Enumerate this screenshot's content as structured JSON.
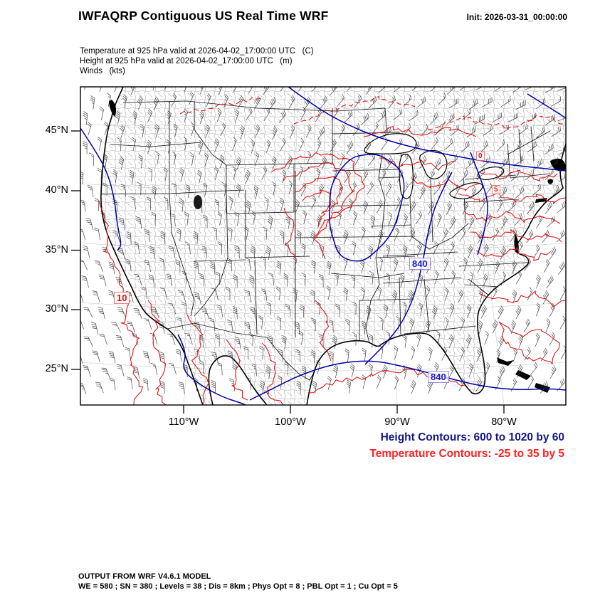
{
  "header": {
    "title": "IWFAQRP Contiguous US Real Time WRF",
    "init": "Init: 2026-03-31_00:00:00"
  },
  "subtitle": {
    "line1": "Temperature at 925 hPa valid at 2026-04-02_17:00:00 UTC   (C)",
    "line2": "Height at 925 hPa valid at 2026-04-02_17:00:00 UTC   (m)",
    "line3": "Winds   (kts)"
  },
  "map": {
    "lat_labels": [
      "45°N",
      "40°N",
      "35°N",
      "30°N",
      "25°N"
    ],
    "lon_labels": [
      "110°W",
      "100°W",
      "90°W",
      "80°W"
    ],
    "contour_labels": [
      {
        "text": "840",
        "type": "height"
      },
      {
        "text": "840",
        "type": "height"
      },
      {
        "text": "10",
        "type": "temperature"
      },
      {
        "text": "0",
        "type": "temperature"
      },
      {
        "text": "5",
        "type": "temperature"
      }
    ]
  },
  "legend": {
    "height_label": "Height Contours: 600 to 1020 by 60",
    "temperature_label": "Temperature Contours: -25 to 35 by 5"
  },
  "colors": {
    "height_contour": "#00008B",
    "temperature_contour": "#E01010",
    "legend_height": "#15158C",
    "legend_temperature": "#FF2020"
  },
  "footer": {
    "line1": "OUTPUT FROM WRF V4.6.1 MODEL",
    "line2": "WE = 580 ; SN = 380 ; Levels = 38 ; Dis = 8km ; Phys Opt = 8 ; PBL Opt = 1 ; Cu Opt = 5"
  }
}
